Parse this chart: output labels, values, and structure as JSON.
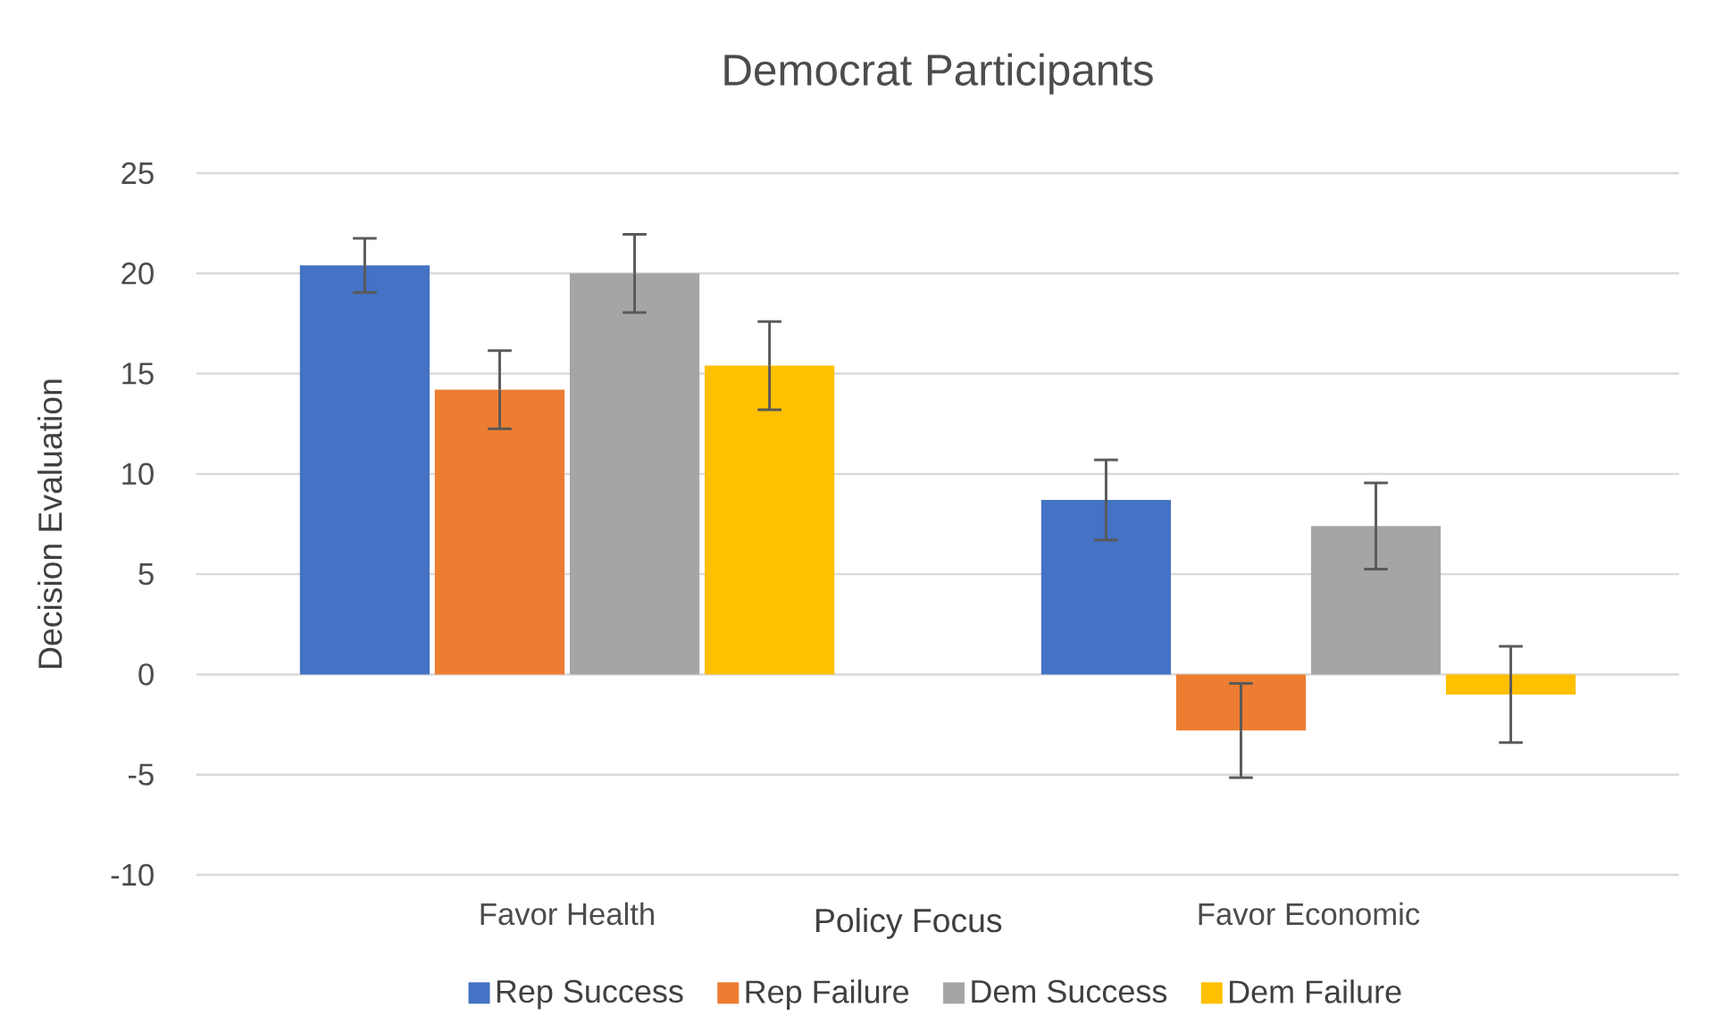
{
  "chart_data": {
    "type": "bar",
    "title": "Democrat Participants",
    "xlabel": "Policy Focus",
    "ylabel": "Decision Evaluation",
    "categories": [
      "Favor Health",
      "Favor Economic"
    ],
    "series": [
      {
        "name": "Rep Success",
        "color": "#4472c4",
        "values": [
          20.4,
          8.7
        ],
        "errors": [
          1.35,
          2.0
        ]
      },
      {
        "name": "Rep Failure",
        "color": "#ed7d31",
        "values": [
          14.2,
          -2.8
        ],
        "errors": [
          1.95,
          2.35
        ]
      },
      {
        "name": "Dem Success",
        "color": "#a5a5a5",
        "values": [
          20.0,
          7.4
        ],
        "errors": [
          1.95,
          2.15
        ]
      },
      {
        "name": "Dem Failure",
        "color": "#ffc000",
        "values": [
          15.4,
          -1.0
        ],
        "errors": [
          2.2,
          2.4
        ]
      }
    ],
    "ylim": [
      -10,
      25
    ],
    "yticks": [
      -10,
      -5,
      0,
      5,
      10,
      15,
      20,
      25
    ],
    "grid": "y",
    "legend": "bottom"
  }
}
